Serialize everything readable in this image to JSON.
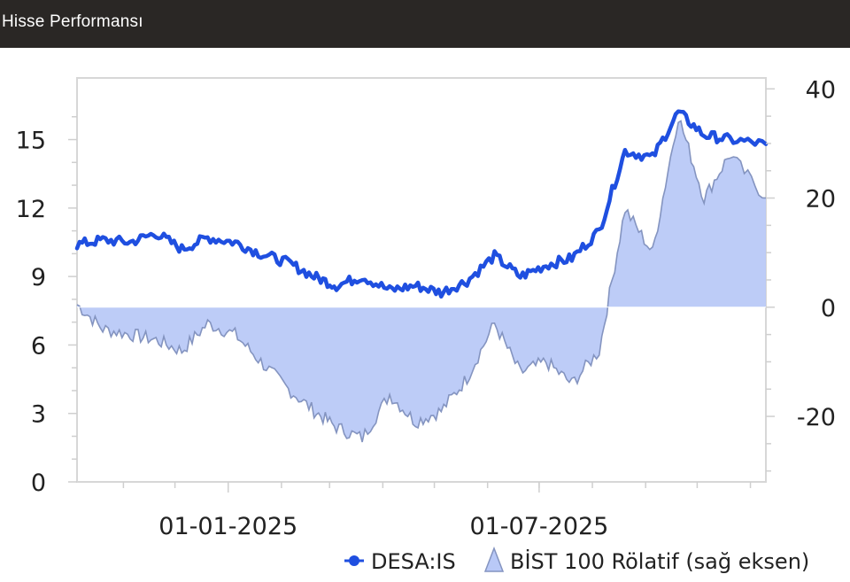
{
  "header": {
    "title": "Hisse Performansı"
  },
  "chart_data": {
    "type": "line",
    "title": "",
    "x_ticks": [
      "01-01-2025",
      "01-07-2025"
    ],
    "x_range": [
      "2024-10-05",
      "2025-11-10"
    ],
    "y_left": {
      "ticks": [
        "0",
        "3",
        "6",
        "9",
        "12",
        "15"
      ],
      "range": [
        0,
        17.7
      ]
    },
    "y_right": {
      "ticks": [
        "-20",
        "0",
        "20",
        "40"
      ],
      "range": [
        -32,
        42
      ]
    },
    "grid": false,
    "legend_position": "bottom-right",
    "series": [
      {
        "name": "DESA:IS",
        "type": "line",
        "axis": "left",
        "color": "#1f4fe0",
        "x": [
          "2024-10-05",
          "2024-10-20",
          "2024-11-05",
          "2024-11-20",
          "2024-12-05",
          "2024-12-20",
          "2025-01-05",
          "2025-01-20",
          "2025-02-05",
          "2025-02-20",
          "2025-03-05",
          "2025-03-20",
          "2025-04-05",
          "2025-04-20",
          "2025-05-05",
          "2025-05-20",
          "2025-06-05",
          "2025-06-20",
          "2025-07-05",
          "2025-07-20",
          "2025-08-05",
          "2025-08-20",
          "2025-09-05",
          "2025-09-20",
          "2025-10-05",
          "2025-10-20",
          "2025-11-10"
        ],
        "y": [
          10.4,
          10.6,
          10.5,
          10.9,
          10.2,
          10.7,
          10.5,
          10.0,
          9.6,
          9.0,
          8.6,
          9.0,
          8.4,
          8.6,
          8.3,
          8.8,
          9.9,
          9.0,
          9.5,
          9.8,
          11.0,
          14.5,
          14.2,
          16.2,
          15.2,
          15.0,
          14.8
        ]
      },
      {
        "name": "BİST 100 Rölatif (sağ eksen)",
        "type": "area",
        "axis": "right",
        "color": "#b9c9f7",
        "x": [
          "2024-10-05",
          "2024-10-20",
          "2024-11-05",
          "2024-11-20",
          "2024-12-05",
          "2024-12-20",
          "2025-01-05",
          "2025-01-20",
          "2025-02-05",
          "2025-02-20",
          "2025-03-05",
          "2025-03-20",
          "2025-04-05",
          "2025-04-20",
          "2025-05-05",
          "2025-05-20",
          "2025-06-05",
          "2025-06-20",
          "2025-07-05",
          "2025-07-20",
          "2025-08-05",
          "2025-08-20",
          "2025-09-05",
          "2025-09-20",
          "2025-10-05",
          "2025-10-20",
          "2025-11-10"
        ],
        "y": [
          0.5,
          -4,
          -5,
          -6,
          -8,
          -3,
          -5,
          -10,
          -15,
          -19,
          -22,
          -24,
          -16,
          -21,
          -19,
          -13,
          -3,
          -12,
          -10,
          -14,
          -8,
          18,
          10,
          35,
          20,
          28,
          20
        ]
      }
    ]
  }
}
